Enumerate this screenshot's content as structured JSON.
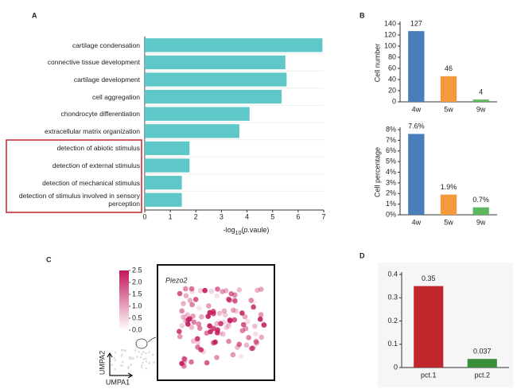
{
  "chart_data": [
    {
      "type": "bar",
      "panel": "A",
      "orientation": "horizontal",
      "categories": [
        "cartilage condensation",
        "connective tissue development",
        "cartilage development",
        "cell aggregation",
        "chondrocyte differentiation",
        "extracellular matrix organization",
        "detection of abiotic stimulus",
        "detection of external stimulus",
        "detection of mechanical stimulus",
        "detection of stimulus involved in sensory perception"
      ],
      "values": [
        6.95,
        5.5,
        5.55,
        5.35,
        4.1,
        3.7,
        1.75,
        1.75,
        1.45,
        1.45
      ],
      "color": "#5ec8c8",
      "xlim": [
        0,
        7
      ],
      "xticks": [
        0,
        1,
        2,
        3,
        4,
        5,
        6,
        7
      ],
      "xlabel_parts": [
        "-log",
        "10",
        "(",
        "p",
        ".vaule)"
      ]
    },
    {
      "type": "bar",
      "panel": "B",
      "categories": [
        "4w",
        "5w",
        "9w"
      ],
      "values": [
        127,
        46,
        4
      ],
      "colors": [
        "#4a7ebb",
        "#f59a3c",
        "#5cb85c"
      ],
      "ylim": [
        0,
        140
      ],
      "yticks": [
        0,
        20,
        40,
        60,
        80,
        100,
        120,
        140
      ],
      "ylabel": "Cell number"
    },
    {
      "type": "bar",
      "categories": [
        "4w",
        "5w",
        "9w"
      ],
      "values": [
        7.6,
        1.9,
        0.7
      ],
      "value_labels": [
        "7.6%",
        "1.9%",
        "0.7%"
      ],
      "colors": [
        "#4a7ebb",
        "#f59a3c",
        "#5cb85c"
      ],
      "ylim": [
        0,
        8
      ],
      "yticks": [
        {
          "value": 0,
          "label": "0%"
        },
        {
          "value": 1,
          "label": "1%"
        },
        {
          "value": 2,
          "label": "2%"
        },
        {
          "value": 3,
          "label": "3%"
        },
        {
          "value": 4,
          "label": "4%"
        },
        {
          "value": 5,
          "label": "5%"
        },
        {
          "value": 6,
          "label": "6%"
        },
        {
          "value": 7,
          "label": "7%"
        },
        {
          "value": 8,
          "label": "8%"
        }
      ],
      "ylabel": "Cell percentage"
    },
    {
      "type": "bar",
      "panel": "D",
      "categories": [
        "pct.1",
        "pct.2"
      ],
      "values": [
        0.35,
        0.037
      ],
      "colors": [
        "#c0272d",
        "#3a8f3a"
      ],
      "ylim": [
        0,
        0.4
      ],
      "yticks": [
        0,
        0.1,
        0.2,
        0.3,
        0.4
      ]
    },
    {
      "type": "umap",
      "panel": "C",
      "title": "Piezo2",
      "xlabel": "UMPA1",
      "ylabel": "UMPA2",
      "clim": [
        0,
        2.5
      ],
      "cticks": [
        {
          "value": 0,
          "label": "0.0"
        },
        0.5,
        {
          "value": 1,
          "label": "1.0"
        },
        1.5,
        {
          "value": 2,
          "label": "2.0"
        },
        2.5
      ],
      "color": "#c2185b"
    }
  ]
}
